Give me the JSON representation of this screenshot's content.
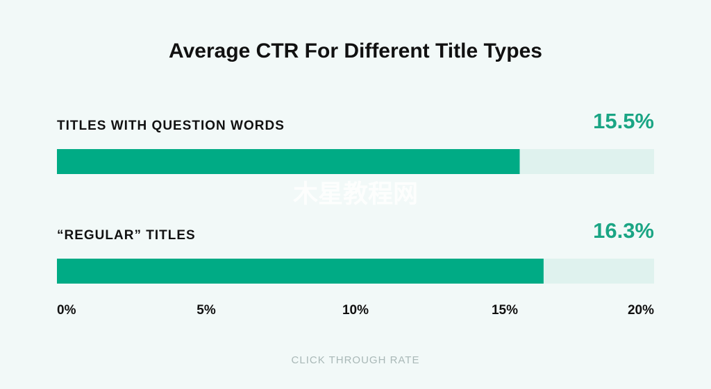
{
  "chart_data": {
    "type": "bar",
    "orientation": "horizontal",
    "title": "Average CTR For Different Title Types",
    "categories": [
      "TITLES WITH QUESTION WORDS",
      "“REGULAR” TITLES"
    ],
    "values": [
      15.5,
      16.3
    ],
    "value_labels": [
      "15.5%",
      "16.3%"
    ],
    "color": "#00ab85",
    "track_color": "#dff2ee",
    "value_label_color": "#1aa584",
    "xlim": [
      0,
      20
    ],
    "xticks": [
      {
        "value": 0,
        "label": "0%"
      },
      {
        "value": 5,
        "label": "5%"
      },
      {
        "value": 10,
        "label": "10%"
      },
      {
        "value": 15,
        "label": "15%"
      },
      {
        "value": 20,
        "label": "20%"
      }
    ],
    "xlabel": "CLICK THROUGH RATE"
  },
  "watermark": "木星教程网"
}
